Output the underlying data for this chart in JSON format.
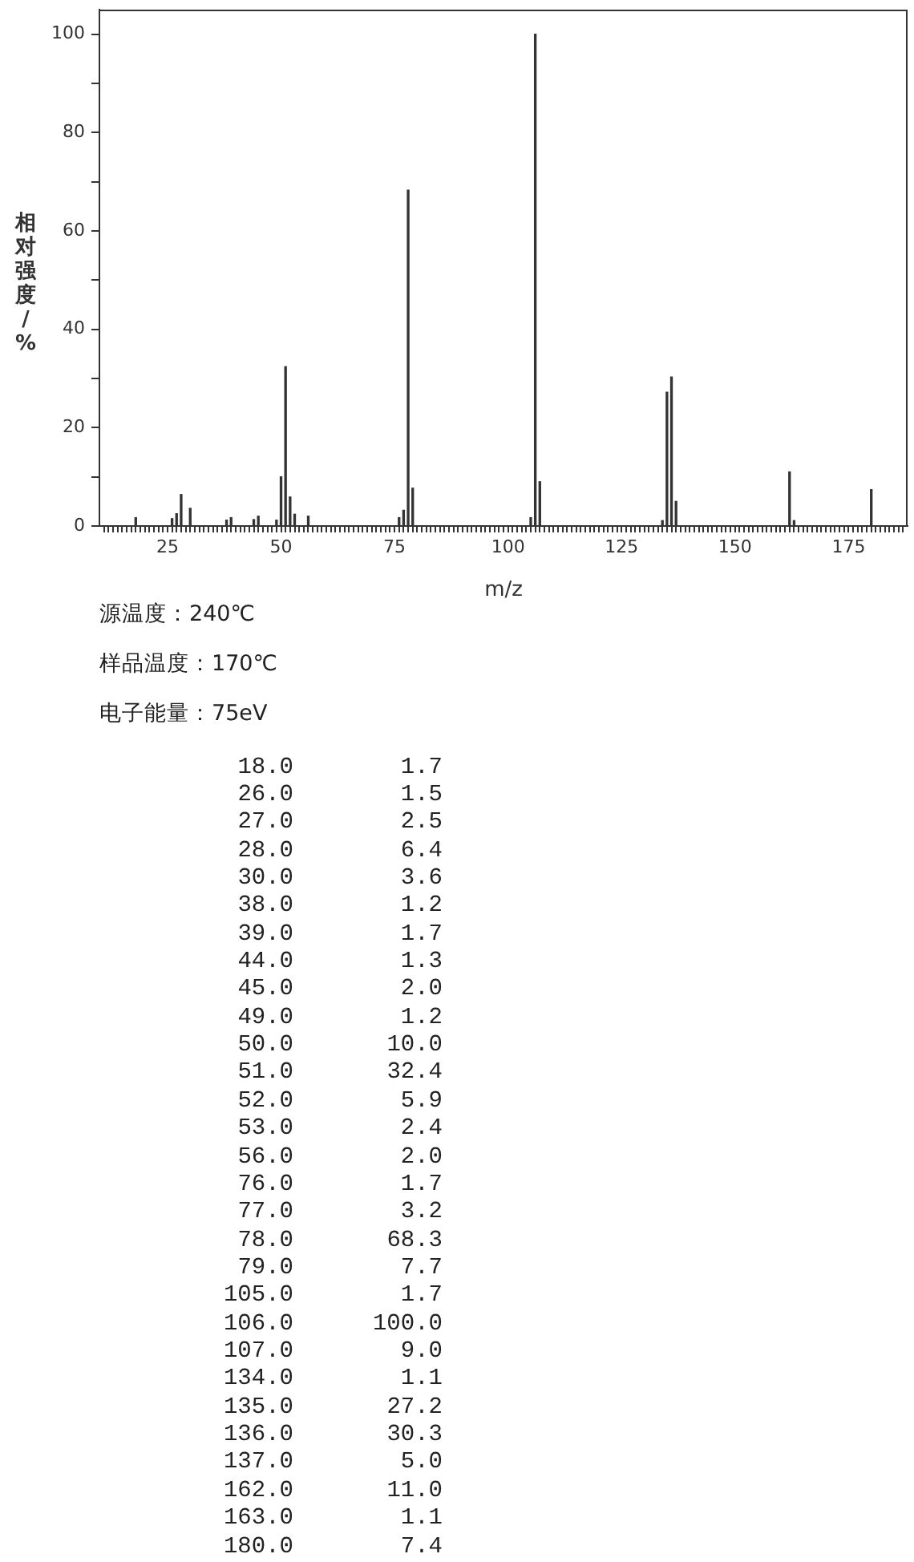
{
  "chart_data": [
    {
      "type": "bar",
      "xlabel": "m/z",
      "ylabel": "相对强度/%",
      "x": [
        18,
        26,
        27,
        28,
        30,
        38,
        39,
        44,
        45,
        49,
        50,
        51,
        52,
        53,
        56,
        76,
        77,
        78,
        79,
        105,
        106,
        107,
        134,
        135,
        136,
        137,
        162,
        163,
        180
      ],
      "values": [
        1.7,
        1.5,
        2.5,
        6.4,
        3.6,
        1.2,
        1.7,
        1.3,
        2.0,
        1.2,
        10.0,
        32.4,
        5.9,
        2.4,
        2.0,
        1.7,
        3.2,
        68.3,
        7.7,
        1.7,
        100.0,
        9.0,
        1.1,
        27.2,
        30.3,
        5.0,
        11.0,
        1.1,
        7.4
      ],
      "color": "#333333",
      "xlim": [
        10,
        188
      ],
      "xticks": [
        {
          "value": 11,
          "label": null
        },
        {
          "value": 12,
          "label": null
        },
        {
          "value": 13,
          "label": null
        },
        {
          "value": 14,
          "label": null
        },
        {
          "value": 15,
          "label": null
        },
        {
          "value": 16,
          "label": null
        },
        {
          "value": 17,
          "label": null
        },
        {
          "value": 18,
          "label": null
        },
        {
          "value": 19,
          "label": null
        },
        {
          "value": 20,
          "label": null
        },
        {
          "value": 21,
          "label": null
        },
        {
          "value": 22,
          "label": null
        },
        {
          "value": 23,
          "label": null
        },
        {
          "value": 24,
          "label": null
        },
        25,
        {
          "value": 26,
          "label": null
        },
        {
          "value": 27,
          "label": null
        },
        {
          "value": 28,
          "label": null
        },
        {
          "value": 29,
          "label": null
        },
        {
          "value": 30,
          "label": null
        },
        {
          "value": 31,
          "label": null
        },
        {
          "value": 32,
          "label": null
        },
        {
          "value": 33,
          "label": null
        },
        {
          "value": 34,
          "label": null
        },
        {
          "value": 35,
          "label": null
        },
        {
          "value": 36,
          "label": null
        },
        {
          "value": 37,
          "label": null
        },
        {
          "value": 38,
          "label": null
        },
        {
          "value": 39,
          "label": null
        },
        {
          "value": 40,
          "label": null
        },
        {
          "value": 41,
          "label": null
        },
        {
          "value": 42,
          "label": null
        },
        {
          "value": 43,
          "label": null
        },
        {
          "value": 44,
          "label": null
        },
        {
          "value": 45,
          "label": null
        },
        {
          "value": 46,
          "label": null
        },
        {
          "value": 47,
          "label": null
        },
        {
          "value": 48,
          "label": null
        },
        {
          "value": 49,
          "label": null
        },
        50,
        {
          "value": 51,
          "label": null
        },
        {
          "value": 52,
          "label": null
        },
        {
          "value": 53,
          "label": null
        },
        {
          "value": 54,
          "label": null
        },
        {
          "value": 55,
          "label": null
        },
        {
          "value": 56,
          "label": null
        },
        {
          "value": 57,
          "label": null
        },
        {
          "value": 58,
          "label": null
        },
        {
          "value": 59,
          "label": null
        },
        {
          "value": 60,
          "label": null
        },
        {
          "value": 61,
          "label": null
        },
        {
          "value": 62,
          "label": null
        },
        {
          "value": 63,
          "label": null
        },
        {
          "value": 64,
          "label": null
        },
        {
          "value": 65,
          "label": null
        },
        {
          "value": 66,
          "label": null
        },
        {
          "value": 67,
          "label": null
        },
        {
          "value": 68,
          "label": null
        },
        {
          "value": 69,
          "label": null
        },
        {
          "value": 70,
          "label": null
        },
        {
          "value": 71,
          "label": null
        },
        {
          "value": 72,
          "label": null
        },
        {
          "value": 73,
          "label": null
        },
        {
          "value": 74,
          "label": null
        },
        75,
        {
          "value": 76,
          "label": null
        },
        {
          "value": 77,
          "label": null
        },
        {
          "value": 78,
          "label": null
        },
        {
          "value": 79,
          "label": null
        },
        {
          "value": 80,
          "label": null
        },
        {
          "value": 81,
          "label": null
        },
        {
          "value": 82,
          "label": null
        },
        {
          "value": 83,
          "label": null
        },
        {
          "value": 84,
          "label": null
        },
        {
          "value": 85,
          "label": null
        },
        {
          "value": 86,
          "label": null
        },
        {
          "value": 87,
          "label": null
        },
        {
          "value": 88,
          "label": null
        },
        {
          "value": 89,
          "label": null
        },
        {
          "value": 90,
          "label": null
        },
        {
          "value": 91,
          "label": null
        },
        {
          "value": 92,
          "label": null
        },
        {
          "value": 93,
          "label": null
        },
        {
          "value": 94,
          "label": null
        },
        {
          "value": 95,
          "label": null
        },
        {
          "value": 96,
          "label": null
        },
        {
          "value": 97,
          "label": null
        },
        {
          "value": 98,
          "label": null
        },
        {
          "value": 99,
          "label": null
        },
        100,
        {
          "value": 101,
          "label": null
        },
        {
          "value": 102,
          "label": null
        },
        {
          "value": 103,
          "label": null
        },
        {
          "value": 104,
          "label": null
        },
        {
          "value": 105,
          "label": null
        },
        {
          "value": 106,
          "label": null
        },
        {
          "value": 107,
          "label": null
        },
        {
          "value": 108,
          "label": null
        },
        {
          "value": 109,
          "label": null
        },
        {
          "value": 110,
          "label": null
        },
        {
          "value": 111,
          "label": null
        },
        {
          "value": 112,
          "label": null
        },
        {
          "value": 113,
          "label": null
        },
        {
          "value": 114,
          "label": null
        },
        {
          "value": 115,
          "label": null
        },
        {
          "value": 116,
          "label": null
        },
        {
          "value": 117,
          "label": null
        },
        {
          "value": 118,
          "label": null
        },
        {
          "value": 119,
          "label": null
        },
        {
          "value": 120,
          "label": null
        },
        {
          "value": 121,
          "label": null
        },
        {
          "value": 122,
          "label": null
        },
        {
          "value": 123,
          "label": null
        },
        {
          "value": 124,
          "label": null
        },
        125,
        {
          "value": 126,
          "label": null
        },
        {
          "value": 127,
          "label": null
        },
        {
          "value": 128,
          "label": null
        },
        {
          "value": 129,
          "label": null
        },
        {
          "value": 130,
          "label": null
        },
        {
          "value": 131,
          "label": null
        },
        {
          "value": 132,
          "label": null
        },
        {
          "value": 133,
          "label": null
        },
        {
          "value": 134,
          "label": null
        },
        {
          "value": 135,
          "label": null
        },
        {
          "value": 136,
          "label": null
        },
        {
          "value": 137,
          "label": null
        },
        {
          "value": 138,
          "label": null
        },
        {
          "value": 139,
          "label": null
        },
        {
          "value": 140,
          "label": null
        },
        {
          "value": 141,
          "label": null
        },
        {
          "value": 142,
          "label": null
        },
        {
          "value": 143,
          "label": null
        },
        {
          "value": 144,
          "label": null
        },
        {
          "value": 145,
          "label": null
        },
        {
          "value": 146,
          "label": null
        },
        {
          "value": 147,
          "label": null
        },
        {
          "value": 148,
          "label": null
        },
        {
          "value": 149,
          "label": null
        },
        150,
        {
          "value": 151,
          "label": null
        },
        {
          "value": 152,
          "label": null
        },
        {
          "value": 153,
          "label": null
        },
        {
          "value": 154,
          "label": null
        },
        {
          "value": 155,
          "label": null
        },
        {
          "value": 156,
          "label": null
        },
        {
          "value": 157,
          "label": null
        },
        {
          "value": 158,
          "label": null
        },
        {
          "value": 159,
          "label": null
        },
        {
          "value": 160,
          "label": null
        },
        {
          "value": 161,
          "label": null
        },
        {
          "value": 162,
          "label": null
        },
        {
          "value": 163,
          "label": null
        },
        {
          "value": 164,
          "label": null
        },
        {
          "value": 165,
          "label": null
        },
        {
          "value": 166,
          "label": null
        },
        {
          "value": 167,
          "label": null
        },
        {
          "value": 168,
          "label": null
        },
        {
          "value": 169,
          "label": null
        },
        {
          "value": 170,
          "label": null
        },
        {
          "value": 171,
          "label": null
        },
        {
          "value": 172,
          "label": null
        },
        {
          "value": 173,
          "label": null
        },
        {
          "value": 174,
          "label": null
        },
        175,
        {
          "value": 176,
          "label": null
        },
        {
          "value": 177,
          "label": null
        },
        {
          "value": 178,
          "label": null
        },
        {
          "value": 179,
          "label": null
        },
        {
          "value": 180,
          "label": null
        },
        {
          "value": 181,
          "label": null
        },
        {
          "value": 182,
          "label": null
        },
        {
          "value": 183,
          "label": null
        },
        {
          "value": 184,
          "label": null
        },
        {
          "value": 185,
          "label": null
        },
        {
          "value": 186,
          "label": null
        },
        {
          "value": 187,
          "label": null
        }
      ],
      "ylim": [
        0,
        105
      ],
      "yticks": [
        0,
        {
          "value": 10,
          "label": null
        },
        20,
        {
          "value": 30,
          "label": null
        },
        40,
        {
          "value": 50,
          "label": null
        },
        60,
        {
          "value": 70,
          "label": null
        },
        80,
        {
          "value": 90,
          "label": null
        },
        100
      ],
      "annotations": [
        "源温度：240℃",
        "样品温度：170℃",
        "电子能量：75eV"
      ]
    },
    {
      "type": "other",
      "annotations": [
        "18.0",
        "1.7",
        "26.0",
        "1.5",
        "27.0",
        "2.5",
        "28.0",
        "6.4",
        "30.0",
        "3.6",
        "38.0",
        "1.2",
        "39.0",
        "1.7",
        "44.0",
        "1.3",
        "45.0",
        "2.0",
        "49.0",
        "1.2",
        "50.0",
        "10.0",
        "51.0",
        "32.4",
        "52.0",
        "5.9",
        "53.0",
        "2.4",
        "56.0",
        "2.0",
        "76.0",
        "1.7",
        "77.0",
        "3.2",
        "78.0",
        "68.3",
        "79.0",
        "7.7",
        "105.0",
        "1.7",
        "106.0",
        "100.0",
        "107.0",
        "9.0",
        "134.0",
        "1.1",
        "135.0",
        "27.2",
        "136.0",
        "30.3",
        "137.0",
        "5.0",
        "162.0",
        "11.0",
        "163.0",
        "1.1",
        "180.0",
        "7.4"
      ]
    }
  ]
}
